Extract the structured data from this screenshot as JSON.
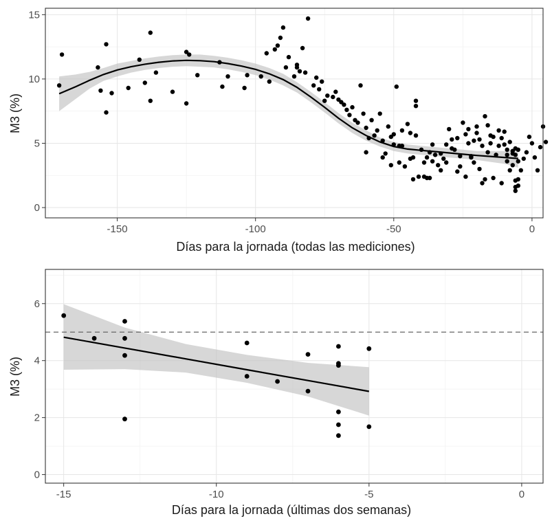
{
  "chart_data": [
    {
      "type": "scatter",
      "id": "top",
      "xlabel": "Días para la jornada (todas las mediciones)",
      "ylabel": "M3 (%)",
      "xlim": [
        -176,
        4
      ],
      "ylim": [
        -0.8,
        15.5
      ],
      "x_ticks": [
        -150,
        -100,
        -50,
        0
      ],
      "x_tick_labels": [
        "-150",
        "-100",
        "-50",
        "0"
      ],
      "y_ticks": [
        0,
        5,
        10,
        15
      ],
      "y_tick_labels": [
        "0",
        "5",
        "10",
        "15"
      ],
      "grid": true,
      "smooth": {
        "method": "loess",
        "x": [
          -171,
          -165,
          -160,
          -155,
          -150,
          -145,
          -140,
          -135,
          -130,
          -125,
          -120,
          -115,
          -110,
          -105,
          -100,
          -95,
          -90,
          -85,
          -80,
          -75,
          -70,
          -65,
          -60,
          -55,
          -50,
          -45,
          -40,
          -35,
          -30,
          -25,
          -20,
          -15,
          -10,
          -5
        ],
        "y": [
          8.85,
          9.4,
          9.9,
          10.35,
          10.7,
          10.95,
          11.15,
          11.3,
          11.4,
          11.45,
          11.42,
          11.35,
          11.2,
          11.0,
          10.75,
          10.4,
          9.95,
          9.35,
          8.6,
          7.8,
          6.95,
          6.2,
          5.6,
          5.1,
          4.75,
          4.55,
          4.45,
          4.35,
          4.25,
          4.15,
          4.05,
          3.98,
          3.9,
          3.82
        ],
        "lower": [
          7.5,
          8.45,
          9.25,
          9.85,
          10.2,
          10.5,
          10.7,
          10.85,
          10.95,
          11.0,
          10.95,
          10.9,
          10.75,
          10.55,
          10.3,
          9.95,
          9.5,
          8.95,
          8.2,
          7.4,
          6.55,
          5.8,
          5.2,
          4.75,
          4.4,
          4.2,
          4.1,
          4.0,
          3.9,
          3.8,
          3.7,
          3.55,
          3.4,
          3.1
        ],
        "upper": [
          10.2,
          10.35,
          10.55,
          10.85,
          11.2,
          11.4,
          11.6,
          11.75,
          11.85,
          11.9,
          11.9,
          11.8,
          11.65,
          11.45,
          11.2,
          10.85,
          10.4,
          9.75,
          9.0,
          8.2,
          7.35,
          6.6,
          6.0,
          5.45,
          5.1,
          4.9,
          4.8,
          4.7,
          4.6,
          4.5,
          4.4,
          4.4,
          4.4,
          4.55
        ]
      },
      "points": [
        [
          -171,
          9.5
        ],
        [
          -170,
          11.9
        ],
        [
          -157,
          10.9
        ],
        [
          -156,
          9.1
        ],
        [
          -154,
          7.4
        ],
        [
          -154,
          12.7
        ],
        [
          -152,
          8.9
        ],
        [
          -146,
          9.3
        ],
        [
          -142,
          11.5
        ],
        [
          -140,
          9.7
        ],
        [
          -138,
          13.6
        ],
        [
          -138,
          8.3
        ],
        [
          -136,
          10.5
        ],
        [
          -130,
          9.0
        ],
        [
          -125,
          12.1
        ],
        [
          -125,
          8.1
        ],
        [
          -124,
          11.9
        ],
        [
          -121,
          10.3
        ],
        [
          -113,
          11.3
        ],
        [
          -112,
          9.4
        ],
        [
          -110,
          10.2
        ],
        [
          -104,
          9.3
        ],
        [
          -103,
          10.3
        ],
        [
          -98,
          10.2
        ],
        [
          -96,
          12.0
        ],
        [
          -95,
          9.8
        ],
        [
          -93,
          12.3
        ],
        [
          -92,
          12.6
        ],
        [
          -91,
          13.2
        ],
        [
          -90,
          14.0
        ],
        [
          -89,
          10.9
        ],
        [
          -88,
          11.7
        ],
        [
          -86,
          10.2
        ],
        [
          -85,
          11.1
        ],
        [
          -85,
          10.9
        ],
        [
          -84,
          10.6
        ],
        [
          -83,
          12.4
        ],
        [
          -82,
          10.5
        ],
        [
          -81,
          14.7
        ],
        [
          -79,
          9.5
        ],
        [
          -78,
          10.1
        ],
        [
          -77,
          9.2
        ],
        [
          -76,
          9.8
        ],
        [
          -75,
          8.3
        ],
        [
          -74,
          8.7
        ],
        [
          -72,
          8.6
        ],
        [
          -71,
          9.0
        ],
        [
          -70,
          8.4
        ],
        [
          -69,
          8.2
        ],
        [
          -68,
          8.0
        ],
        [
          -67,
          7.6
        ],
        [
          -66,
          7.2
        ],
        [
          -65,
          7.8
        ],
        [
          -64,
          6.8
        ],
        [
          -63,
          6.6
        ],
        [
          -62,
          9.5
        ],
        [
          -61,
          7.3
        ],
        [
          -60,
          6.2
        ],
        [
          -60,
          4.3
        ],
        [
          -59,
          5.4
        ],
        [
          -58,
          6.8
        ],
        [
          -57,
          5.6
        ],
        [
          -56,
          6.0
        ],
        [
          -55,
          7.3
        ],
        [
          -54,
          3.9
        ],
        [
          -54,
          5.2
        ],
        [
          -53,
          4.2
        ],
        [
          -52,
          6.3
        ],
        [
          -51,
          5.5
        ],
        [
          -50,
          5.7
        ],
        [
          -49,
          9.4
        ],
        [
          -48,
          4.8
        ],
        [
          -47,
          6.0
        ],
        [
          -45,
          6.5
        ],
        [
          -44,
          5.8
        ],
        [
          -43,
          2.2
        ],
        [
          -42,
          7.9
        ],
        [
          -42,
          8.3
        ],
        [
          -40,
          4.5
        ],
        [
          -39,
          3.5
        ],
        [
          -38,
          3.9
        ],
        [
          -37,
          4.3
        ],
        [
          -36,
          3.6
        ],
        [
          -35,
          4.1
        ],
        [
          -34,
          3.3
        ],
        [
          -33,
          2.9
        ],
        [
          -32,
          3.8
        ],
        [
          -31,
          4.9
        ],
        [
          -30,
          6.1
        ],
        [
          -29,
          5.3
        ],
        [
          -28,
          4.5
        ],
        [
          -27,
          2.8
        ],
        [
          -26,
          4.0
        ],
        [
          -25,
          6.6
        ],
        [
          -24,
          2.4
        ],
        [
          -23,
          6.1
        ],
        [
          -23,
          5.0
        ],
        [
          -22,
          4.0
        ],
        [
          -21,
          3.5
        ],
        [
          -20,
          6.3
        ],
        [
          -19,
          5.3
        ],
        [
          -18,
          4.8
        ],
        [
          -17,
          2.2
        ],
        [
          -16,
          4.3
        ],
        [
          -15,
          5.6
        ],
        [
          -14,
          2.3
        ],
        [
          -13,
          4.1
        ],
        [
          -12,
          6.0
        ],
        [
          -11,
          5.4
        ],
        [
          -10,
          4.9
        ],
        [
          -9,
          4.1
        ],
        [
          -8,
          5.1
        ],
        [
          -7,
          4.4
        ],
        [
          -6,
          4.6
        ],
        [
          -5,
          3.6
        ],
        [
          -4,
          2.9
        ],
        [
          -3,
          3.8
        ],
        [
          -2,
          4.3
        ],
        [
          -1,
          5.5
        ],
        [
          0,
          5.0
        ],
        [
          1,
          3.9
        ],
        [
          2,
          2.9
        ],
        [
          3,
          4.7
        ],
        [
          4,
          6.3
        ],
        [
          5,
          5.1
        ],
        [
          -29,
          4.6
        ],
        [
          -26,
          3.2
        ],
        [
          -24,
          5.7
        ],
        [
          -21,
          5.2
        ],
        [
          -19,
          3.0
        ],
        [
          -18,
          1.9
        ],
        [
          -17,
          7.1
        ],
        [
          -16,
          6.4
        ],
        [
          -14,
          5.5
        ],
        [
          -12,
          4.8
        ],
        [
          -11,
          1.9
        ],
        [
          -9,
          4.5
        ],
        [
          -8,
          2.9
        ],
        [
          -7,
          3.3
        ],
        [
          -6,
          4.1
        ],
        [
          -6,
          2.1
        ],
        [
          -5,
          4.5
        ],
        [
          -5,
          2.2
        ],
        [
          -6,
          1.6
        ],
        [
          -5,
          1.7
        ],
        [
          -6,
          1.3
        ],
        [
          -7,
          4.2
        ],
        [
          -9,
          3.6
        ],
        [
          -10,
          5.9
        ],
        [
          -15,
          5.0
        ],
        [
          -20,
          5.8
        ],
        [
          -22,
          3.9
        ],
        [
          -27,
          5.4
        ],
        [
          -31,
          3.5
        ],
        [
          -33,
          4.2
        ],
        [
          -36,
          4.9
        ],
        [
          -37,
          2.3
        ],
        [
          -38,
          2.3
        ],
        [
          -39,
          2.4
        ],
        [
          -41,
          2.4
        ],
        [
          -42,
          5.6
        ],
        [
          -43,
          3.9
        ],
        [
          -44,
          3.8
        ],
        [
          -46,
          3.2
        ],
        [
          -47,
          4.8
        ],
        [
          -48,
          3.5
        ],
        [
          -50,
          4.9
        ],
        [
          -51,
          3.3
        ]
      ]
    },
    {
      "type": "scatter",
      "id": "bottom",
      "xlabel": "Días para la jornada (últimas dos semanas)",
      "ylabel": "M3 (%)",
      "xlim": [
        -15.6,
        0.7
      ],
      "ylim": [
        -0.3,
        7.2
      ],
      "x_ticks": [
        -15,
        -10,
        -5,
        0
      ],
      "x_tick_labels": [
        "-15",
        "-10",
        "-5",
        "0"
      ],
      "y_ticks": [
        0,
        2,
        4,
        6
      ],
      "y_tick_labels": [
        "0",
        "2",
        "4",
        "6"
      ],
      "grid": true,
      "reference_line_y": 5,
      "fit": {
        "method": "lm",
        "x": [
          -15,
          -13,
          -11,
          -9,
          -7,
          -5
        ],
        "y": [
          4.82,
          4.44,
          4.06,
          3.68,
          3.3,
          2.92
        ],
        "lower": [
          3.68,
          3.7,
          3.58,
          3.22,
          2.74,
          2.07
        ],
        "upper": [
          5.98,
          5.16,
          4.58,
          4.2,
          3.92,
          3.77
        ]
      },
      "points": [
        [
          -15,
          5.58
        ],
        [
          -14,
          4.78
        ],
        [
          -13,
          5.38
        ],
        [
          -13,
          4.78
        ],
        [
          -13,
          4.18
        ],
        [
          -13,
          1.95
        ],
        [
          -9,
          4.62
        ],
        [
          -9,
          3.45
        ],
        [
          -8,
          3.27
        ],
        [
          -7,
          4.22
        ],
        [
          -7,
          2.93
        ],
        [
          -6,
          4.5
        ],
        [
          -6,
          3.9
        ],
        [
          -6,
          3.83
        ],
        [
          -6,
          2.2
        ],
        [
          -6,
          1.75
        ],
        [
          -6,
          1.37
        ],
        [
          -5,
          4.42
        ],
        [
          -5,
          1.68
        ]
      ]
    }
  ]
}
